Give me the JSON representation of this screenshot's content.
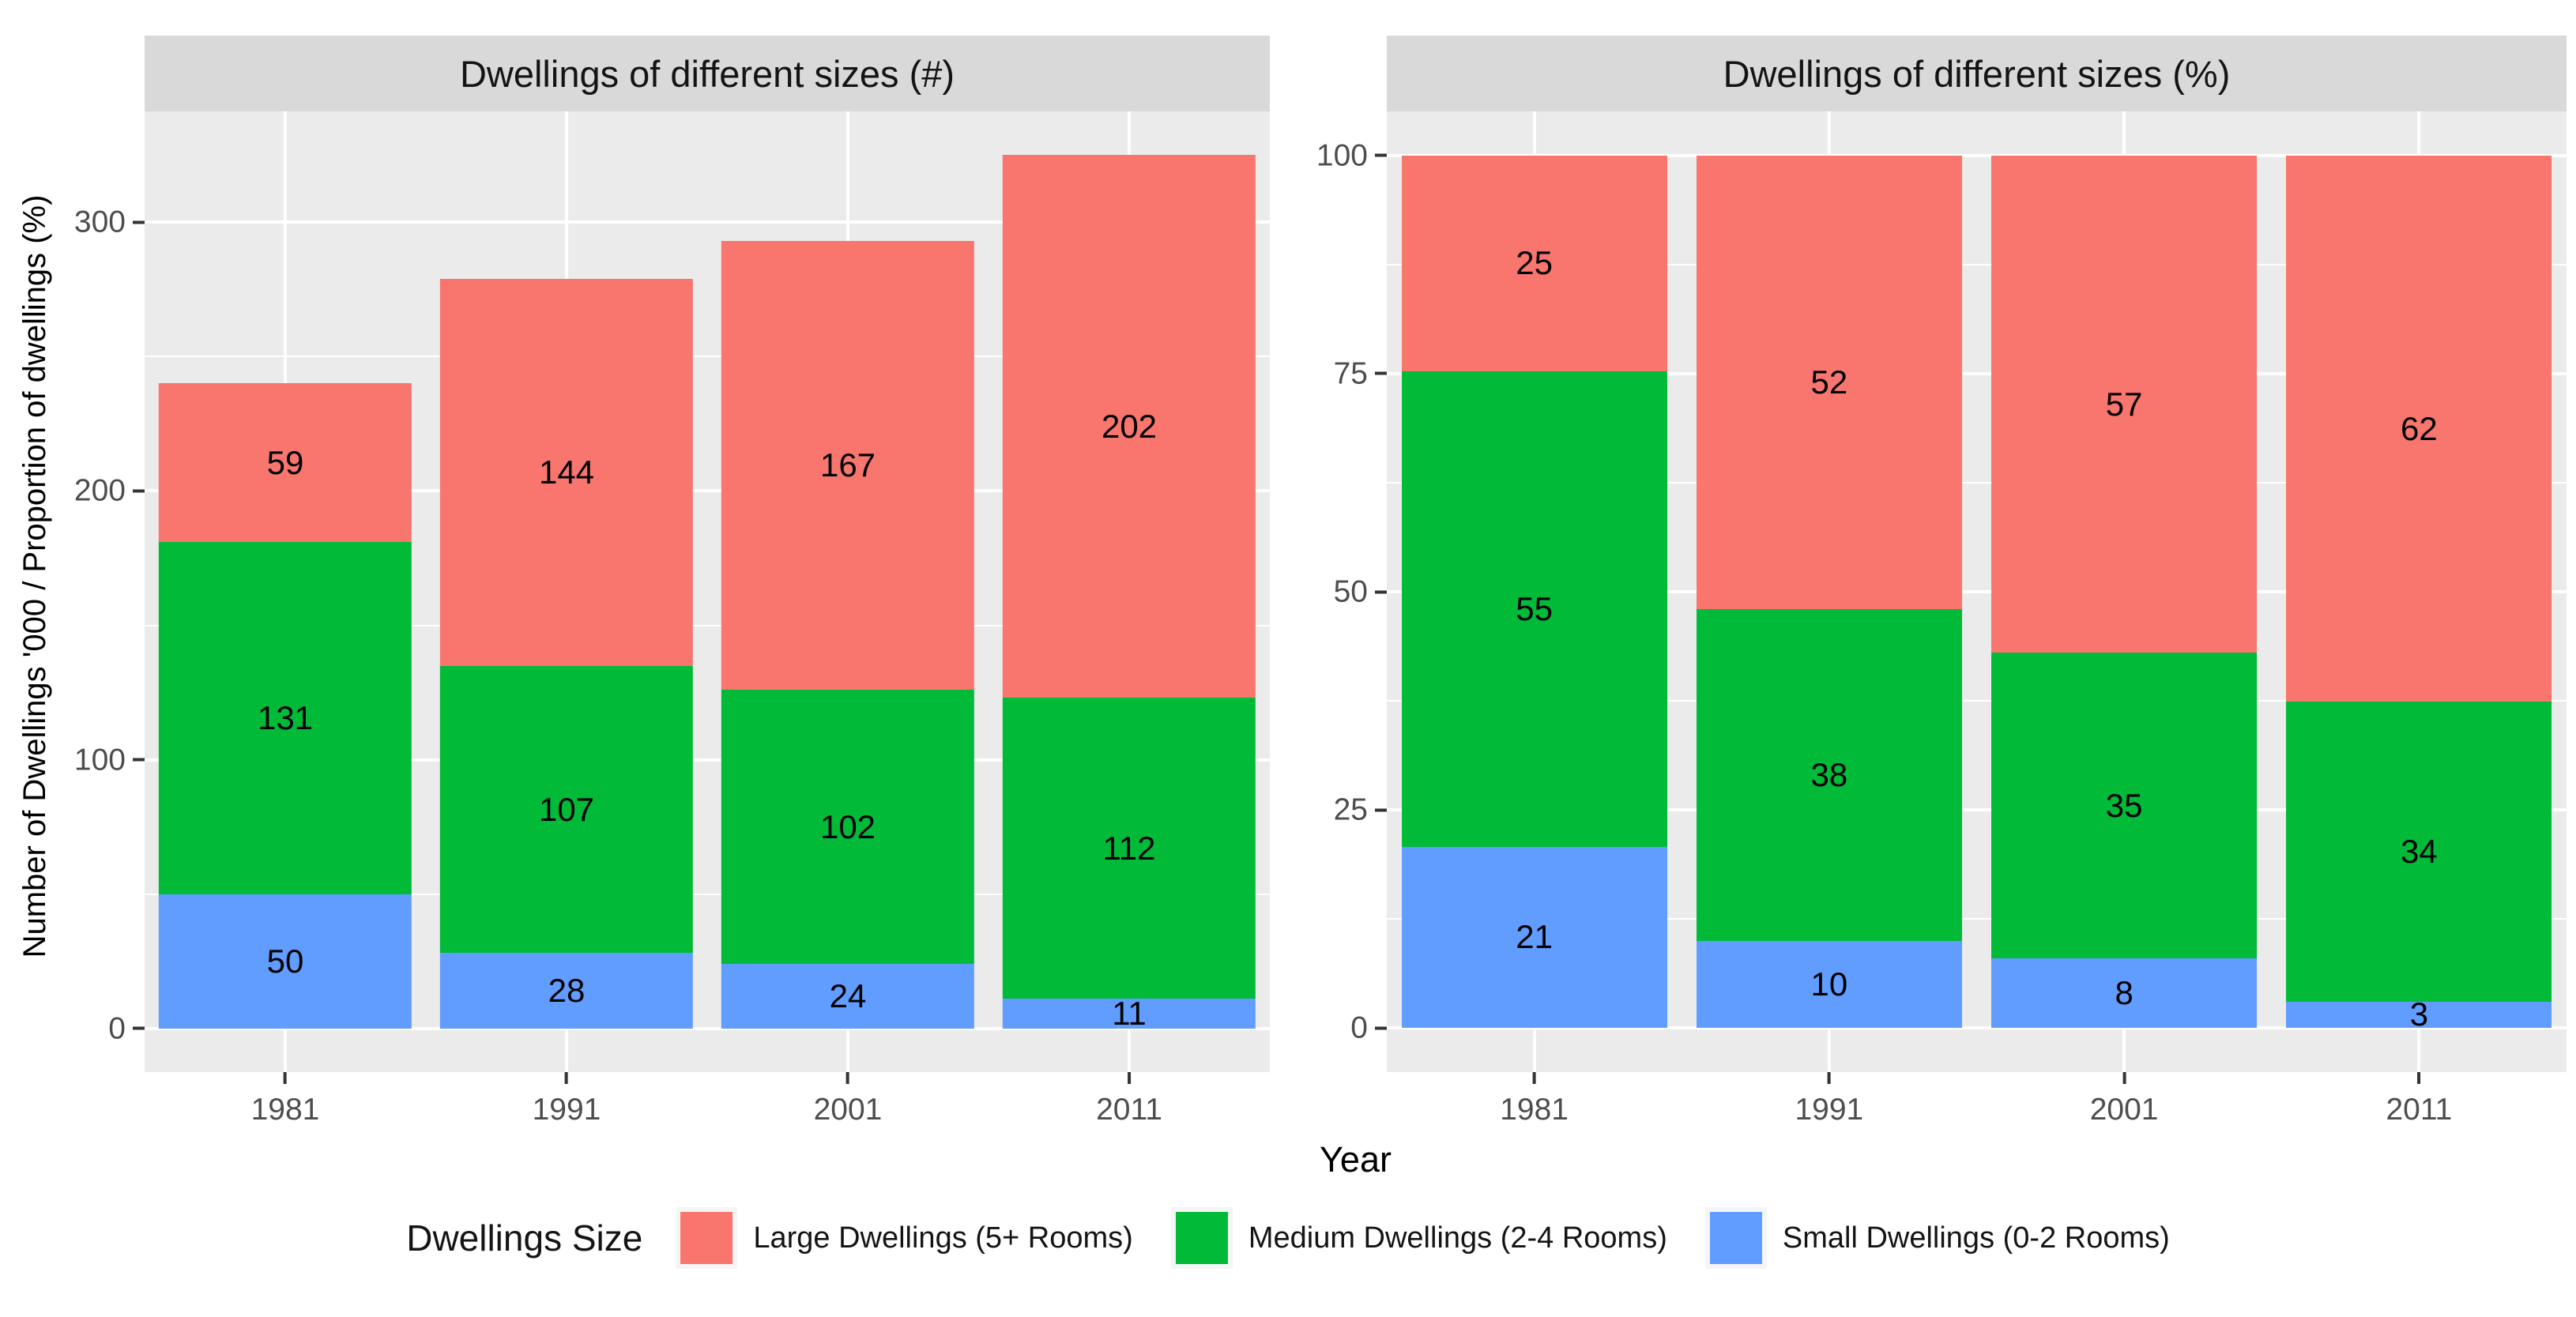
{
  "axes": {
    "y_title": "Number of Dwellings '000 / Proportion of dwellings (%)",
    "x_title": "Year"
  },
  "legend": {
    "title": "Dwellings Size",
    "entries": [
      {
        "label": "Large Dwellings (5+ Rooms)",
        "color": "#F8766D",
        "swatch": "large-dwellings-swatch"
      },
      {
        "label": "Medium Dwellings (2-4 Rooms)",
        "color": "#00BA38",
        "swatch": "medium-dwellings-swatch"
      },
      {
        "label": "Small Dwellings (0-2 Rooms)",
        "color": "#619CFF",
        "swatch": "small-dwellings-swatch"
      }
    ]
  },
  "palette": {
    "large": "#F8766D",
    "medium": "#00BA38",
    "small": "#619CFF",
    "panel_bg": "#EBEBEB",
    "strip_bg": "#D9D9D9",
    "gridline": "#FFFFFF",
    "tick_label": "#4D4D4D",
    "tick_mark": "#333333",
    "legend_key_bg": "#F5F5F5"
  },
  "chart_data": [
    {
      "type": "bar",
      "stacked": true,
      "stack_order": "bottom-to-top",
      "title": "Dwellings of different sizes (#)",
      "categories": [
        "1981",
        "1991",
        "2001",
        "2011"
      ],
      "series": [
        {
          "name": "Small Dwellings (0-2 Rooms)",
          "color": "#619CFF",
          "values": [
            50,
            28,
            24,
            11
          ]
        },
        {
          "name": "Medium Dwellings (2-4 Rooms)",
          "color": "#00BA38",
          "values": [
            131,
            107,
            102,
            112
          ]
        },
        {
          "name": "Large Dwellings (5+ Rooms)",
          "color": "#F8766D",
          "values": [
            59,
            144,
            167,
            202
          ]
        }
      ],
      "totals": [
        240,
        279,
        293,
        325
      ],
      "y_ticks": [
        0,
        100,
        200,
        300
      ],
      "ylim": [
        -16.25,
        341.25
      ],
      "normalize": false,
      "grid": true,
      "xlabel": "Year",
      "ylabel": "Number of Dwellings '000 / Proportion of dwellings (%)",
      "legend_position": "bottom-shared",
      "bar_width_fraction": 0.9
    },
    {
      "type": "bar",
      "stacked": true,
      "stack_order": "bottom-to-top",
      "title": "Dwellings of different sizes (%)",
      "categories": [
        "1981",
        "1991",
        "2001",
        "2011"
      ],
      "series": [
        {
          "name": "Small Dwellings (0-2 Rooms)",
          "color": "#619CFF",
          "values": [
            21,
            10,
            8,
            3
          ]
        },
        {
          "name": "Medium Dwellings (2-4 Rooms)",
          "color": "#00BA38",
          "values": [
            55,
            38,
            35,
            34
          ]
        },
        {
          "name": "Large Dwellings (5+ Rooms)",
          "color": "#F8766D",
          "values": [
            25,
            52,
            57,
            62
          ]
        }
      ],
      "y_ticks": [
        0,
        25,
        50,
        75,
        100
      ],
      "ylim": [
        -5.05,
        105.05
      ],
      "normalize": true,
      "grid": true,
      "xlabel": "Year",
      "ylabel": "Proportion of dwellings (%)",
      "legend_position": "bottom-shared",
      "bar_width_fraction": 0.9
    }
  ]
}
